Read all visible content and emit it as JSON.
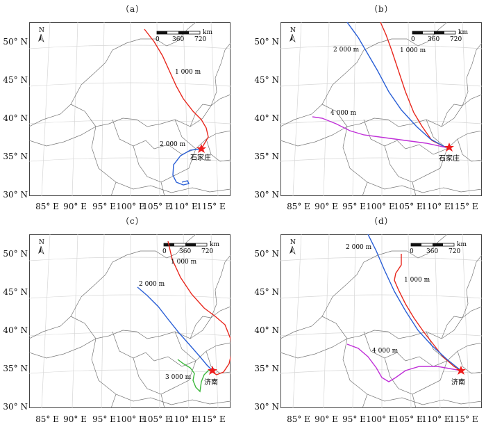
{
  "panels": [
    {
      "label": "（a）",
      "y_ticks": [
        "50° N",
        "45° N",
        "40° N",
        "35° N",
        "30° N"
      ],
      "x_ticks": [
        "85° E",
        "90° E",
        "95° E",
        "100° E",
        "105° E",
        "110° E",
        "115° E"
      ],
      "scale": {
        "zero": "0",
        "mid": "360",
        "end": "720",
        "unit": "km"
      },
      "north": "N",
      "city": "石家庄",
      "trajectories": [
        {
          "label": "1 000 m",
          "color": "#e8281e"
        },
        {
          "label": "2 000 m",
          "color": "#2a5fd6"
        }
      ]
    },
    {
      "label": "（b）",
      "y_ticks": [
        "50° N",
        "45° N",
        "40° N",
        "35° N",
        "30° N"
      ],
      "x_ticks": [
        "85° E",
        "90° E",
        "95° E",
        "100° E",
        "105° E",
        "110° E",
        "115° E"
      ],
      "scale": {
        "zero": "0",
        "mid": "360",
        "end": "720",
        "unit": "km"
      },
      "north": "N",
      "city": "石家庄",
      "trajectories": [
        {
          "label": "1 000 m",
          "color": "#e8281e"
        },
        {
          "label": "2 000 m",
          "color": "#2a5fd6"
        },
        {
          "label": "4 000 m",
          "color": "#c030d8"
        }
      ]
    },
    {
      "label": "（c）",
      "y_ticks": [
        "50° N",
        "45° N",
        "40° N",
        "35° N",
        "30° N"
      ],
      "x_ticks": [
        "85° E",
        "90° E",
        "95° E",
        "100° E",
        "105° E",
        "110° E",
        "115° E"
      ],
      "scale": {
        "zero": "0",
        "mid": "360",
        "end": "720",
        "unit": "km"
      },
      "north": "N",
      "city": "济南",
      "trajectories": [
        {
          "label": "1 000 m",
          "color": "#e8281e"
        },
        {
          "label": "2 000 m",
          "color": "#2a5fd6"
        },
        {
          "label": "3 000 m",
          "color": "#3cb83c"
        }
      ]
    },
    {
      "label": "（d）",
      "y_ticks": [
        "50° N",
        "45° N",
        "40° N",
        "35° N",
        "30° N"
      ],
      "x_ticks": [
        "85° E",
        "90° E",
        "95° E",
        "100° E",
        "105° E",
        "110° E",
        "115° E"
      ],
      "scale": {
        "zero": "0",
        "mid": "360",
        "end": "720",
        "unit": "km"
      },
      "north": "N",
      "city": "济南",
      "trajectories": [
        {
          "label": "1 000 m",
          "color": "#e8281e"
        },
        {
          "label": "2 000 m",
          "color": "#2a5fd6"
        },
        {
          "label": "4 000 m",
          "color": "#c030d8"
        }
      ]
    }
  ]
}
